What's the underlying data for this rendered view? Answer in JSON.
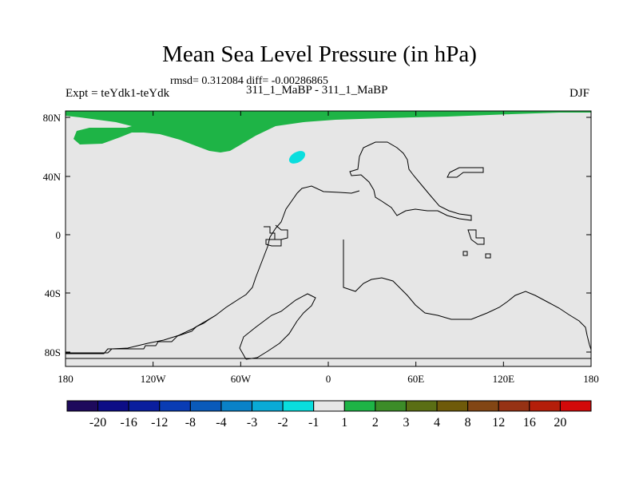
{
  "title": "Mean Sea Level Pressure (in hPa)",
  "stats": "rmsd= 0.312084 diff= -0.00286865",
  "experiment_label": "Expt = teYdk1-teYdk",
  "experiment_id": "311_1_MaBP - 311_1_MaBP",
  "season": "DJF",
  "map": {
    "lon_range": [
      -180,
      180
    ],
    "lat_range": [
      -90,
      90
    ],
    "x_ticks": [
      "180",
      "120W",
      "60W",
      "0",
      "60E",
      "120E",
      "180"
    ],
    "y_ticks": [
      "80N",
      "40N",
      "0",
      "40S",
      "80S"
    ]
  },
  "colorbar": {
    "colors": [
      "#1e0a5c",
      "#0d0d86",
      "#0a1e9e",
      "#0a3cb4",
      "#0a5aba",
      "#0a82c8",
      "#0aaad6",
      "#0adede",
      "#e6e6e6",
      "#1eb446",
      "#3c8c28",
      "#5a6e14",
      "#6e5a0a",
      "#824614",
      "#963214",
      "#b41e0a",
      "#d20a0a"
    ],
    "labels": [
      "-20",
      "-16",
      "-12",
      "-8",
      "-4",
      "-3",
      "-2",
      "-1",
      "1",
      "2",
      "3",
      "4",
      "8",
      "12",
      "16",
      "20"
    ]
  }
}
